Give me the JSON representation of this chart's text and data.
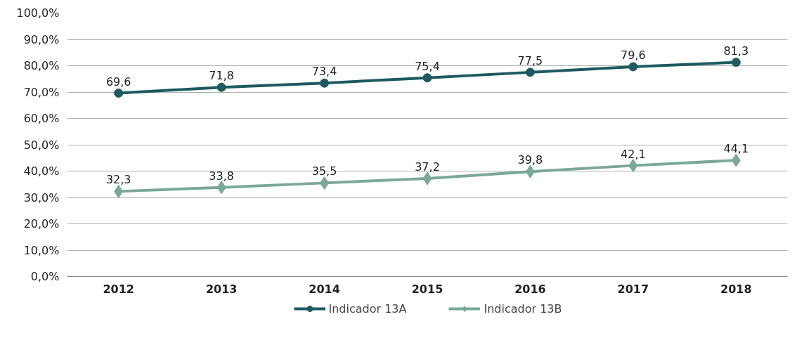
{
  "chart_data": {
    "type": "line",
    "categories": [
      "2012",
      "2013",
      "2014",
      "2015",
      "2016",
      "2017",
      "2018"
    ],
    "series": [
      {
        "name": "Indicador 13A",
        "color": "#1e5a60",
        "marker": "circle",
        "values": [
          69.6,
          71.8,
          73.4,
          75.4,
          77.5,
          79.6,
          81.3
        ],
        "value_labels": [
          "69,6",
          "71,8",
          "73,4",
          "75,4",
          "77,5",
          "79,6",
          "81,3"
        ]
      },
      {
        "name": "Indicador 13B",
        "color": "#7ba897",
        "marker": "diamond",
        "values": [
          32.3,
          33.8,
          35.5,
          37.2,
          39.8,
          42.1,
          44.1
        ],
        "value_labels": [
          "32,3",
          "33,8",
          "35,5",
          "37,2",
          "39,8",
          "42,1",
          "44,1"
        ]
      }
    ],
    "ylim": [
      0,
      100
    ],
    "yticks": [
      {
        "value": 0,
        "label": "0,0%"
      },
      {
        "value": 10,
        "label": "10,0%"
      },
      {
        "value": 20,
        "label": "20,0%"
      },
      {
        "value": 30,
        "label": "30,0%"
      },
      {
        "value": 40,
        "label": "40,0%"
      },
      {
        "value": 50,
        "label": "50,0%"
      },
      {
        "value": 60,
        "label": "60,0%"
      },
      {
        "value": 70,
        "label": "70,0%"
      },
      {
        "value": 80,
        "label": "80,0%"
      },
      {
        "value": 90,
        "label": "90,0%"
      },
      {
        "value": 100,
        "label": "100,0%"
      }
    ],
    "grid": "y",
    "legend": "bottom",
    "line_style": "solid"
  }
}
